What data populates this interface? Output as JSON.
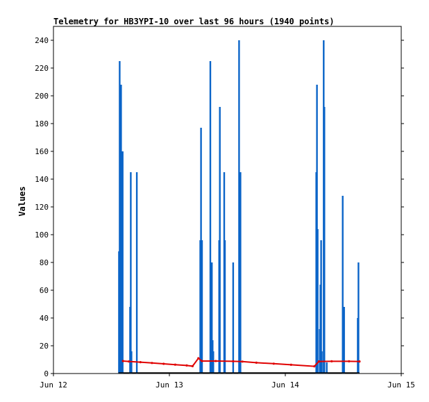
{
  "chart_data": {
    "type": "bar",
    "title": "Telemetry for HB3YPI-10 over last 96 hours (1940 points)",
    "ylabel": "Values",
    "xlabel": "",
    "ylim": [
      0,
      250
    ],
    "xlim": [
      0,
      3
    ],
    "x_ticks": [
      {
        "value": 0,
        "label": "Jun 12"
      },
      {
        "value": 1,
        "label": "Jun 13"
      },
      {
        "value": 2,
        "label": "Jun 14"
      },
      {
        "value": 3,
        "label": "Jun 15"
      }
    ],
    "y_ticks": [
      0,
      20,
      40,
      60,
      80,
      100,
      120,
      140,
      160,
      180,
      200,
      220,
      240
    ],
    "grid": false,
    "series": [
      {
        "color": "#0a64c8",
        "kind": "bar",
        "points": [
          {
            "x": 0.564,
            "y": 88
          },
          {
            "x": 0.57,
            "y": 225
          },
          {
            "x": 0.576,
            "y": 104
          },
          {
            "x": 0.582,
            "y": 208
          },
          {
            "x": 0.588,
            "y": 48
          },
          {
            "x": 0.596,
            "y": 160
          },
          {
            "x": 0.66,
            "y": 48
          },
          {
            "x": 0.666,
            "y": 145
          },
          {
            "x": 0.672,
            "y": 16
          },
          {
            "x": 0.718,
            "y": 145
          },
          {
            "x": 1.265,
            "y": 96
          },
          {
            "x": 1.272,
            "y": 177
          },
          {
            "x": 1.28,
            "y": 96
          },
          {
            "x": 1.352,
            "y": 225
          },
          {
            "x": 1.358,
            "y": 48
          },
          {
            "x": 1.365,
            "y": 80
          },
          {
            "x": 1.372,
            "y": 24
          },
          {
            "x": 1.378,
            "y": 16
          },
          {
            "x": 1.428,
            "y": 96
          },
          {
            "x": 1.434,
            "y": 192
          },
          {
            "x": 1.472,
            "y": 145
          },
          {
            "x": 1.478,
            "y": 96
          },
          {
            "x": 1.549,
            "y": 80
          },
          {
            "x": 1.6,
            "y": 240
          },
          {
            "x": 1.606,
            "y": 112
          },
          {
            "x": 1.612,
            "y": 145
          },
          {
            "x": 2.266,
            "y": 145
          },
          {
            "x": 2.272,
            "y": 208
          },
          {
            "x": 2.278,
            "y": 104
          },
          {
            "x": 2.296,
            "y": 32
          },
          {
            "x": 2.302,
            "y": 64
          },
          {
            "x": 2.308,
            "y": 96
          },
          {
            "x": 2.314,
            "y": 16
          },
          {
            "x": 2.33,
            "y": 240
          },
          {
            "x": 2.336,
            "y": 192
          },
          {
            "x": 2.356,
            "y": 8
          },
          {
            "x": 2.494,
            "y": 128
          },
          {
            "x": 2.506,
            "y": 48
          },
          {
            "x": 2.624,
            "y": 40
          },
          {
            "x": 2.63,
            "y": 80
          }
        ]
      },
      {
        "color": "#e00000",
        "kind": "line",
        "points": [
          {
            "x": 0.6,
            "y": 9
          },
          {
            "x": 0.65,
            "y": 8.7
          },
          {
            "x": 0.75,
            "y": 8.2
          },
          {
            "x": 0.85,
            "y": 7.6
          },
          {
            "x": 0.95,
            "y": 7
          },
          {
            "x": 1.05,
            "y": 6.4
          },
          {
            "x": 1.15,
            "y": 5.8
          },
          {
            "x": 1.2,
            "y": 5.3
          },
          {
            "x": 1.25,
            "y": 11
          },
          {
            "x": 1.28,
            "y": 9
          },
          {
            "x": 1.4,
            "y": 9
          },
          {
            "x": 1.55,
            "y": 8.8
          },
          {
            "x": 1.63,
            "y": 8.6
          },
          {
            "x": 1.75,
            "y": 7.8
          },
          {
            "x": 1.9,
            "y": 7.1
          },
          {
            "x": 2.05,
            "y": 6.3
          },
          {
            "x": 2.25,
            "y": 5.2
          },
          {
            "x": 2.29,
            "y": 8.7
          },
          {
            "x": 2.4,
            "y": 8.8
          },
          {
            "x": 2.55,
            "y": 8.8
          },
          {
            "x": 2.64,
            "y": 8.7
          }
        ]
      },
      {
        "color": "#000000",
        "kind": "line",
        "points": [
          {
            "x": 0.56,
            "y": 0.5
          },
          {
            "x": 2.64,
            "y": 0.5
          }
        ]
      }
    ]
  }
}
